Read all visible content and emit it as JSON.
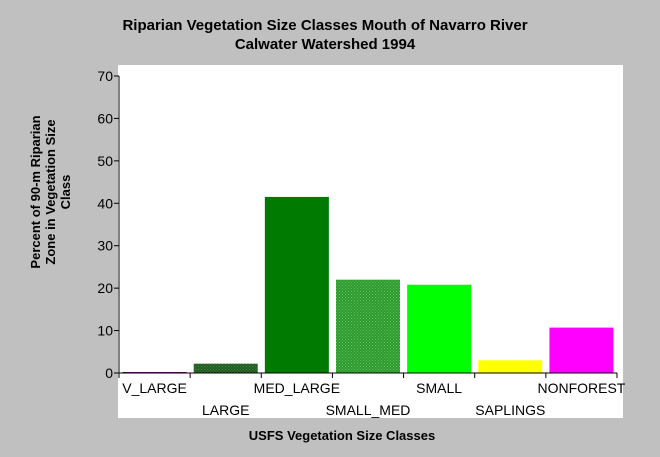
{
  "chart_data": {
    "type": "bar",
    "title_line1": "Riparian Vegetation Size Classes Mouth of Navarro River",
    "title_line2": "Calwater Watershed 1994",
    "xlabel": "USFS Vegetation Size Classes",
    "ylabel_lines": [
      "Percent of 90-m Riparian",
      "Zone in Vegetation Size",
      "Class"
    ],
    "categories": [
      "V_LARGE",
      "LARGE",
      "MED_LARGE",
      "SMALL_MED",
      "SMALL",
      "SAPLINGS",
      "NONFOREST"
    ],
    "values": [
      0.2,
      2.2,
      41.5,
      22.0,
      20.8,
      3.0,
      10.7
    ],
    "colors": [
      "#800080",
      "#2a6e2a",
      "#007a00",
      "#3aa63a",
      "#00ff00",
      "#ffff00",
      "#ff00ff"
    ],
    "hatched": [
      false,
      true,
      false,
      true,
      false,
      false,
      false
    ],
    "ylim": [
      0,
      70
    ],
    "yticks": [
      0,
      10,
      20,
      30,
      40,
      50,
      60,
      70
    ],
    "grid": false,
    "legend": "none"
  }
}
